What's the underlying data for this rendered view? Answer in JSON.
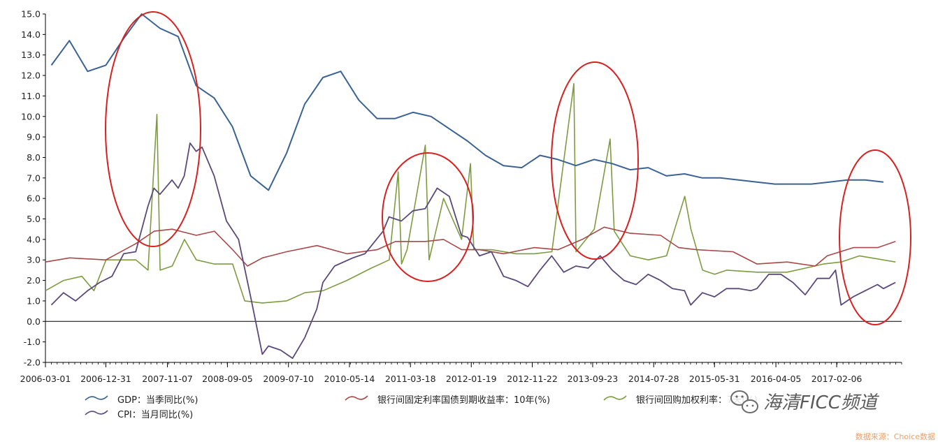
{
  "chart_data": {
    "type": "line",
    "ylim": [
      -2.0,
      15.0
    ],
    "y_ticks": [
      "15.0",
      "14.0",
      "13.0",
      "12.0",
      "11.0",
      "10.0",
      "9.0",
      "8.0",
      "7.0",
      "6.0",
      "5.0",
      "4.0",
      "3.0",
      "2.0",
      "1.0",
      "0.0",
      "-1.0",
      "-2.0"
    ],
    "x_range": [
      "2006-03-01",
      "2017-12-31"
    ],
    "x_tick_labels": [
      "2006-03-01",
      "2006-12-31",
      "2007-11-07",
      "2008-09-05",
      "2009-07-10",
      "2010-05-14",
      "2011-03-18",
      "2012-01-19",
      "2012-11-22",
      "2013-09-23",
      "2014-07-28",
      "2015-05-31",
      "2016-04-05",
      "2017-02-06"
    ],
    "grid": false,
    "legend_position": "bottom",
    "series": [
      {
        "name": "GDP：当季同比(%)",
        "color": "#3a6393",
        "points": [
          [
            "2006-03-31",
            12.5
          ],
          [
            "2006-06-30",
            13.7
          ],
          [
            "2006-09-30",
            12.2
          ],
          [
            "2006-12-31",
            12.5
          ],
          [
            "2007-03-31",
            13.8
          ],
          [
            "2007-06-30",
            15.0
          ],
          [
            "2007-09-30",
            14.3
          ],
          [
            "2007-12-31",
            13.9
          ],
          [
            "2008-03-31",
            11.5
          ],
          [
            "2008-06-30",
            10.9
          ],
          [
            "2008-09-30",
            9.5
          ],
          [
            "2008-12-31",
            7.1
          ],
          [
            "2009-03-31",
            6.4
          ],
          [
            "2009-06-30",
            8.2
          ],
          [
            "2009-09-30",
            10.6
          ],
          [
            "2009-12-31",
            11.9
          ],
          [
            "2010-03-31",
            12.2
          ],
          [
            "2010-06-30",
            10.8
          ],
          [
            "2010-09-30",
            9.9
          ],
          [
            "2010-12-31",
            9.9
          ],
          [
            "2011-03-31",
            10.2
          ],
          [
            "2011-06-30",
            10.0
          ],
          [
            "2011-09-30",
            9.4
          ],
          [
            "2011-12-31",
            8.8
          ],
          [
            "2012-03-31",
            8.1
          ],
          [
            "2012-06-30",
            7.6
          ],
          [
            "2012-09-30",
            7.5
          ],
          [
            "2012-12-31",
            8.1
          ],
          [
            "2013-03-31",
            7.9
          ],
          [
            "2013-06-30",
            7.6
          ],
          [
            "2013-09-30",
            7.9
          ],
          [
            "2013-12-31",
            7.7
          ],
          [
            "2014-03-31",
            7.4
          ],
          [
            "2014-06-30",
            7.5
          ],
          [
            "2014-09-30",
            7.1
          ],
          [
            "2014-12-31",
            7.2
          ],
          [
            "2015-03-31",
            7.0
          ],
          [
            "2015-06-30",
            7.0
          ],
          [
            "2015-09-30",
            6.9
          ],
          [
            "2015-12-31",
            6.8
          ],
          [
            "2016-03-31",
            6.7
          ],
          [
            "2016-06-30",
            6.7
          ],
          [
            "2016-09-30",
            6.7
          ],
          [
            "2016-12-31",
            6.8
          ],
          [
            "2017-03-31",
            6.9
          ],
          [
            "2017-06-30",
            6.9
          ],
          [
            "2017-09-30",
            6.8
          ]
        ]
      },
      {
        "name": "CPI：当月同比(%)",
        "color": "#5a4a7a",
        "points": [
          [
            "2006-03-31",
            0.8
          ],
          [
            "2006-05-31",
            1.4
          ],
          [
            "2006-07-31",
            1.0
          ],
          [
            "2006-09-30",
            1.5
          ],
          [
            "2006-11-30",
            1.9
          ],
          [
            "2007-01-31",
            2.2
          ],
          [
            "2007-03-31",
            3.3
          ],
          [
            "2007-05-31",
            3.4
          ],
          [
            "2007-07-31",
            5.6
          ],
          [
            "2007-08-31",
            6.5
          ],
          [
            "2007-09-30",
            6.2
          ],
          [
            "2007-11-30",
            6.9
          ],
          [
            "2007-12-31",
            6.5
          ],
          [
            "2008-01-31",
            7.1
          ],
          [
            "2008-02-29",
            8.7
          ],
          [
            "2008-03-31",
            8.3
          ],
          [
            "2008-04-30",
            8.5
          ],
          [
            "2008-06-30",
            7.1
          ],
          [
            "2008-08-31",
            4.9
          ],
          [
            "2008-10-31",
            4.0
          ],
          [
            "2008-12-31",
            1.2
          ],
          [
            "2009-02-28",
            -1.6
          ],
          [
            "2009-03-31",
            -1.2
          ],
          [
            "2009-05-31",
            -1.4
          ],
          [
            "2009-07-31",
            -1.8
          ],
          [
            "2009-09-30",
            -0.8
          ],
          [
            "2009-11-30",
            0.6
          ],
          [
            "2009-12-31",
            1.9
          ],
          [
            "2010-02-28",
            2.7
          ],
          [
            "2010-05-31",
            3.1
          ],
          [
            "2010-07-31",
            3.3
          ],
          [
            "2010-10-31",
            4.4
          ],
          [
            "2010-11-30",
            5.1
          ],
          [
            "2011-01-31",
            4.9
          ],
          [
            "2011-03-31",
            5.4
          ],
          [
            "2011-05-31",
            5.5
          ],
          [
            "2011-07-31",
            6.5
          ],
          [
            "2011-09-30",
            6.1
          ],
          [
            "2011-11-30",
            4.2
          ],
          [
            "2011-12-31",
            4.1
          ],
          [
            "2012-02-29",
            3.2
          ],
          [
            "2012-04-30",
            3.4
          ],
          [
            "2012-06-30",
            2.2
          ],
          [
            "2012-08-31",
            2.0
          ],
          [
            "2012-10-31",
            1.7
          ],
          [
            "2012-12-31",
            2.5
          ],
          [
            "2013-02-28",
            3.2
          ],
          [
            "2013-04-30",
            2.4
          ],
          [
            "2013-06-30",
            2.7
          ],
          [
            "2013-08-31",
            2.6
          ],
          [
            "2013-10-31",
            3.2
          ],
          [
            "2013-12-31",
            2.5
          ],
          [
            "2014-02-28",
            2.0
          ],
          [
            "2014-04-30",
            1.8
          ],
          [
            "2014-06-30",
            2.3
          ],
          [
            "2014-08-31",
            2.0
          ],
          [
            "2014-10-31",
            1.6
          ],
          [
            "2014-12-31",
            1.5
          ],
          [
            "2015-01-31",
            0.8
          ],
          [
            "2015-03-31",
            1.4
          ],
          [
            "2015-05-31",
            1.2
          ],
          [
            "2015-07-31",
            1.6
          ],
          [
            "2015-09-30",
            1.6
          ],
          [
            "2015-11-30",
            1.5
          ],
          [
            "2015-12-31",
            1.6
          ],
          [
            "2016-02-29",
            2.3
          ],
          [
            "2016-04-30",
            2.3
          ],
          [
            "2016-06-30",
            1.9
          ],
          [
            "2016-08-31",
            1.3
          ],
          [
            "2016-10-31",
            2.1
          ],
          [
            "2016-12-31",
            2.1
          ],
          [
            "2017-01-31",
            2.5
          ],
          [
            "2017-02-28",
            0.8
          ],
          [
            "2017-04-30",
            1.2
          ],
          [
            "2017-06-30",
            1.5
          ],
          [
            "2017-08-31",
            1.8
          ],
          [
            "2017-09-30",
            1.6
          ],
          [
            "2017-11-30",
            1.9
          ]
        ]
      },
      {
        "name": "银行间固定利率国债到期收益率：10年(%)",
        "color": "#a84848",
        "points": [
          [
            "2006-03-01",
            2.9
          ],
          [
            "2006-07-01",
            3.1
          ],
          [
            "2006-12-31",
            3.0
          ],
          [
            "2007-06-01",
            3.8
          ],
          [
            "2007-09-01",
            4.4
          ],
          [
            "2007-12-01",
            4.5
          ],
          [
            "2008-04-01",
            4.2
          ],
          [
            "2008-07-01",
            4.4
          ],
          [
            "2008-10-01",
            3.5
          ],
          [
            "2008-12-15",
            2.7
          ],
          [
            "2009-03-01",
            3.1
          ],
          [
            "2009-07-01",
            3.4
          ],
          [
            "2009-12-01",
            3.7
          ],
          [
            "2010-05-01",
            3.3
          ],
          [
            "2010-10-01",
            3.5
          ],
          [
            "2011-01-01",
            3.9
          ],
          [
            "2011-06-01",
            3.9
          ],
          [
            "2011-09-01",
            4.0
          ],
          [
            "2011-12-01",
            3.5
          ],
          [
            "2012-03-01",
            3.5
          ],
          [
            "2012-07-01",
            3.3
          ],
          [
            "2012-12-01",
            3.6
          ],
          [
            "2013-04-01",
            3.5
          ],
          [
            "2013-08-01",
            4.0
          ],
          [
            "2013-11-20",
            4.6
          ],
          [
            "2014-04-01",
            4.3
          ],
          [
            "2014-09-01",
            4.2
          ],
          [
            "2014-12-01",
            3.6
          ],
          [
            "2015-03-01",
            3.5
          ],
          [
            "2015-09-01",
            3.4
          ],
          [
            "2016-01-01",
            2.8
          ],
          [
            "2016-06-01",
            2.9
          ],
          [
            "2016-10-20",
            2.7
          ],
          [
            "2016-12-20",
            3.2
          ],
          [
            "2017-05-01",
            3.6
          ],
          [
            "2017-09-01",
            3.6
          ],
          [
            "2017-11-30",
            3.9
          ]
        ]
      },
      {
        "name": "银行间回购加权利率：7天(%)",
        "color": "#7d9c3f",
        "points": [
          [
            "2006-03-01",
            1.5
          ],
          [
            "2006-06-01",
            2.0
          ],
          [
            "2006-09-01",
            2.2
          ],
          [
            "2006-11-01",
            1.5
          ],
          [
            "2007-01-01",
            3.0
          ],
          [
            "2007-04-01",
            3.0
          ],
          [
            "2007-06-01",
            3.0
          ],
          [
            "2007-08-01",
            2.5
          ],
          [
            "2007-09-15",
            10.1
          ],
          [
            "2007-10-01",
            2.5
          ],
          [
            "2007-12-01",
            2.7
          ],
          [
            "2008-02-01",
            4.0
          ],
          [
            "2008-04-01",
            3.0
          ],
          [
            "2008-07-01",
            2.8
          ],
          [
            "2008-10-01",
            2.8
          ],
          [
            "2008-12-01",
            1.0
          ],
          [
            "2009-03-01",
            0.9
          ],
          [
            "2009-07-01",
            1.0
          ],
          [
            "2009-10-01",
            1.4
          ],
          [
            "2010-01-01",
            1.5
          ],
          [
            "2010-05-01",
            2.0
          ],
          [
            "2010-09-01",
            2.6
          ],
          [
            "2010-12-01",
            3.0
          ],
          [
            "2011-01-15",
            7.3
          ],
          [
            "2011-02-01",
            2.8
          ],
          [
            "2011-03-01",
            3.5
          ],
          [
            "2011-06-01",
            8.6
          ],
          [
            "2011-06-20",
            3.0
          ],
          [
            "2011-09-01",
            6.0
          ],
          [
            "2011-12-01",
            4.0
          ],
          [
            "2012-01-15",
            7.7
          ],
          [
            "2012-02-01",
            3.5
          ],
          [
            "2012-05-01",
            3.5
          ],
          [
            "2012-09-01",
            3.3
          ],
          [
            "2012-12-01",
            3.3
          ],
          [
            "2013-03-01",
            3.4
          ],
          [
            "2013-06-20",
            11.6
          ],
          [
            "2013-07-01",
            3.4
          ],
          [
            "2013-10-01",
            4.5
          ],
          [
            "2013-12-20",
            8.9
          ],
          [
            "2014-01-10",
            4.4
          ],
          [
            "2014-04-01",
            3.2
          ],
          [
            "2014-07-01",
            3.0
          ],
          [
            "2014-10-01",
            3.2
          ],
          [
            "2015-01-01",
            6.1
          ],
          [
            "2015-02-01",
            4.5
          ],
          [
            "2015-04-01",
            2.5
          ],
          [
            "2015-06-01",
            2.3
          ],
          [
            "2015-08-01",
            2.5
          ],
          [
            "2016-01-01",
            2.4
          ],
          [
            "2016-06-01",
            2.4
          ],
          [
            "2016-09-01",
            2.6
          ],
          [
            "2016-12-01",
            2.8
          ],
          [
            "2017-03-01",
            2.9
          ],
          [
            "2017-06-01",
            3.2
          ],
          [
            "2017-11-30",
            2.9
          ]
        ]
      }
    ]
  },
  "legend": [
    {
      "key": "gdp",
      "label": "GDP：当季同比(%)",
      "color": "#3a6393"
    },
    {
      "key": "cpi",
      "label": "CPI：当月同比(%)",
      "color": "#5a4a7a"
    },
    {
      "key": "bond",
      "label": "银行间固定利率国债到期收益率：10年(%)",
      "color": "#a84848"
    },
    {
      "key": "repo",
      "label": "银行间回购加权利率：7天(%)",
      "color": "#7d9c3f"
    }
  ],
  "annotations": {
    "ellipse_color": "#d92020",
    "ellipse_count": 4
  },
  "watermark": {
    "text": "海清FICC频道",
    "icon": "wechat-icon"
  },
  "source_text": "数据来源：Choice数据"
}
